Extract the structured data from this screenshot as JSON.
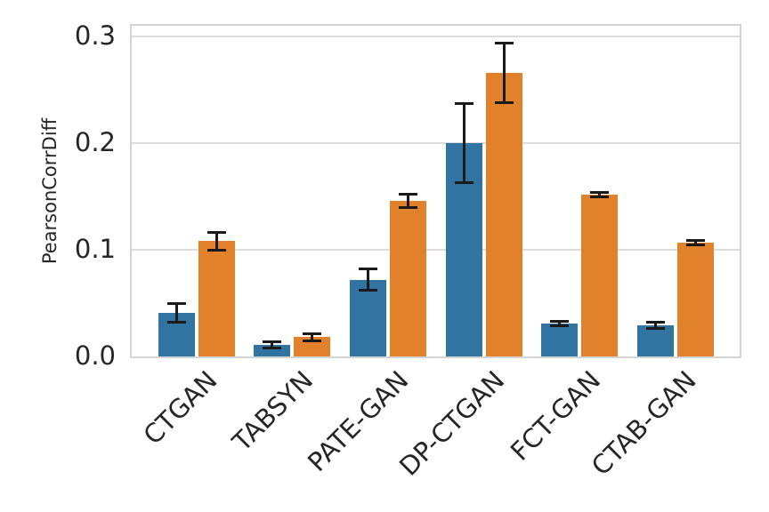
{
  "figure": {
    "background": "#ffffff",
    "text_color": "#262626",
    "grid_color": "#dcdcdc",
    "spine_color": "#d4d4d4"
  },
  "chart_data": {
    "type": "bar",
    "title": "",
    "xlabel": "",
    "ylabel": "PearsonCorrDiff",
    "grid": true,
    "legend_position": "none",
    "categories": [
      "CTGAN",
      "TABSYN",
      "PATE-GAN",
      "DP-CTGAN",
      "FCT-GAN",
      "CTAB-GAN"
    ],
    "series": [
      {
        "name": "series-blue",
        "color": "#3274a1",
        "values": [
          0.041,
          0.011,
          0.072,
          0.2,
          0.031,
          0.029
        ],
        "errors": [
          0.009,
          0.003,
          0.01,
          0.037,
          0.002,
          0.003
        ]
      },
      {
        "name": "series-orange",
        "color": "#e1812c",
        "values": [
          0.108,
          0.018,
          0.146,
          0.266,
          0.152,
          0.107
        ],
        "errors": [
          0.008,
          0.003,
          0.006,
          0.028,
          0.002,
          0.002
        ]
      }
    ],
    "error_bar_color": "#1a1a1a",
    "yticks": [
      0.0,
      0.1,
      0.2,
      0.3
    ],
    "ytick_labels": [
      "0.0",
      "0.1",
      "0.2",
      "0.3"
    ],
    "ylim": [
      0,
      0.312
    ]
  }
}
